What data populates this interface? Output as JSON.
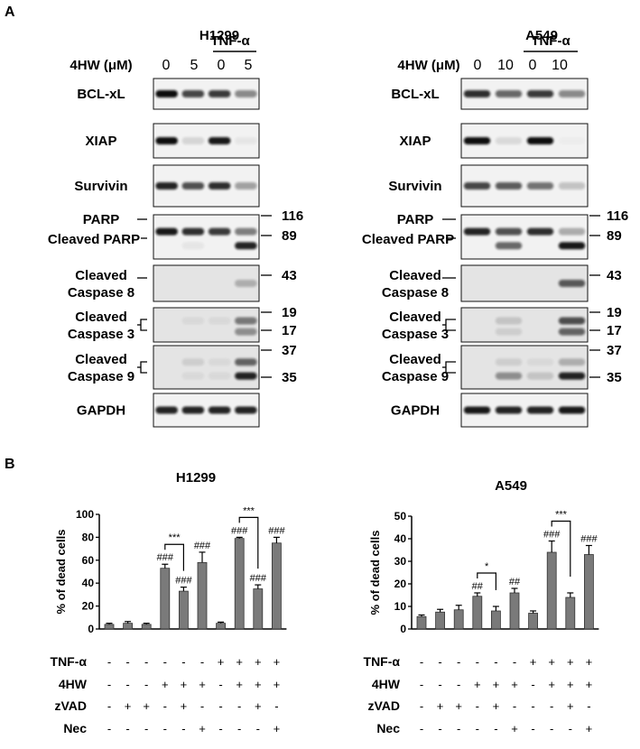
{
  "panel_a": {
    "label": "A",
    "blots": [
      {
        "cell_line": "H1299",
        "dose_label": "4HW (μM)",
        "doses": [
          "0",
          "5",
          "0",
          "5"
        ],
        "treatment": "TNF-α",
        "rows": [
          {
            "label": [
              "BCL-xL"
            ]
          },
          {
            "label": [
              "XIAP"
            ]
          },
          {
            "label": [
              "Survivin"
            ]
          },
          {
            "label": [
              "PARP",
              "Cleaved PARP"
            ],
            "mw": [
              "116",
              "89"
            ]
          },
          {
            "label": [
              "Cleaved",
              "Caspase 8"
            ],
            "mw": [
              "43"
            ]
          },
          {
            "label": [
              "Cleaved",
              "Caspase 3"
            ],
            "mw": [
              "19",
              "17"
            ]
          },
          {
            "label": [
              "Cleaved",
              "Caspase 9"
            ],
            "mw": [
              "37",
              "35"
            ]
          },
          {
            "label": [
              "GAPDH"
            ]
          }
        ]
      },
      {
        "cell_line": "A549",
        "dose_label": "4HW (μM)",
        "doses": [
          "0",
          "10",
          "0",
          "10"
        ],
        "treatment": "TNF-α",
        "rows": [
          {
            "label": [
              "BCL-xL"
            ]
          },
          {
            "label": [
              "XIAP"
            ]
          },
          {
            "label": [
              "Survivin"
            ]
          },
          {
            "label": [
              "PARP",
              "Cleaved PARP"
            ],
            "mw": [
              "116",
              "89"
            ]
          },
          {
            "label": [
              "Cleaved",
              "Caspase 8"
            ],
            "mw": [
              "43"
            ]
          },
          {
            "label": [
              "Cleaved",
              "Caspase 3"
            ],
            "mw": [
              "19",
              "17"
            ]
          },
          {
            "label": [
              "Cleaved",
              "Caspase 9"
            ],
            "mw": [
              "37",
              "35"
            ]
          },
          {
            "label": [
              "GAPDH"
            ]
          }
        ]
      }
    ]
  },
  "panel_b": {
    "label": "B"
  },
  "chart_data": [
    {
      "type": "bar",
      "title": "H1299",
      "ylabel": "% of dead cells",
      "ylim": [
        0,
        100
      ],
      "yticks": [
        "0",
        "20",
        "40",
        "60",
        "80",
        "100"
      ],
      "values": [
        4,
        5,
        4,
        53,
        33,
        58,
        5,
        79,
        35,
        75
      ],
      "errors": [
        1,
        1.5,
        1,
        3.5,
        3.5,
        9,
        1,
        1,
        3.5,
        5
      ],
      "annotations": [
        "",
        "",
        "",
        "###",
        "###",
        "###",
        "",
        "###",
        "###",
        "###"
      ],
      "brackets": [
        {
          "from": 3,
          "to": 4,
          "label": "***"
        },
        {
          "from": 7,
          "to": 8,
          "label": "***"
        }
      ],
      "conditions": [
        {
          "name": "TNF-α",
          "signs": [
            "-",
            "-",
            "-",
            "-",
            "-",
            "-",
            "+",
            "+",
            "+",
            "+"
          ]
        },
        {
          "name": "4HW",
          "signs": [
            "-",
            "-",
            "-",
            "+",
            "+",
            "+",
            "-",
            "+",
            "+",
            "+"
          ]
        },
        {
          "name": "zVAD",
          "signs": [
            "-",
            "+",
            "+",
            "-",
            "+",
            "-",
            "-",
            "-",
            "+",
            "-"
          ]
        },
        {
          "name": "Nec",
          "signs": [
            "-",
            "-",
            "-",
            "-",
            "-",
            "+",
            "-",
            "-",
            "-",
            "+"
          ]
        }
      ]
    },
    {
      "type": "bar",
      "title": "A549",
      "ylabel": "% of dead cells",
      "ylim": [
        0,
        50
      ],
      "yticks": [
        "0",
        "10",
        "20",
        "30",
        "40",
        "50"
      ],
      "values": [
        5.5,
        7.5,
        8.5,
        14.5,
        8,
        16,
        7,
        34,
        14,
        33
      ],
      "errors": [
        0.7,
        1.2,
        2,
        1.5,
        2,
        2,
        1,
        5,
        2,
        4
      ],
      "annotations": [
        "",
        "",
        "",
        "##",
        "",
        "##",
        "",
        "###",
        "",
        "###"
      ],
      "brackets": [
        {
          "from": 3,
          "to": 4,
          "label": "*"
        },
        {
          "from": 7,
          "to": 8,
          "label": "***"
        }
      ],
      "conditions": [
        {
          "name": "TNF-α",
          "signs": [
            "-",
            "-",
            "-",
            "-",
            "-",
            "-",
            "+",
            "+",
            "+",
            "+"
          ]
        },
        {
          "name": "4HW",
          "signs": [
            "-",
            "-",
            "-",
            "+",
            "+",
            "+",
            "-",
            "+",
            "+",
            "+"
          ]
        },
        {
          "name": "zVAD",
          "signs": [
            "-",
            "+",
            "+",
            "-",
            "+",
            "-",
            "-",
            "-",
            "+",
            "-"
          ]
        },
        {
          "name": "Nec",
          "signs": [
            "-",
            "-",
            "-",
            "-",
            "-",
            "+",
            "-",
            "-",
            "-",
            "+"
          ]
        }
      ]
    }
  ]
}
